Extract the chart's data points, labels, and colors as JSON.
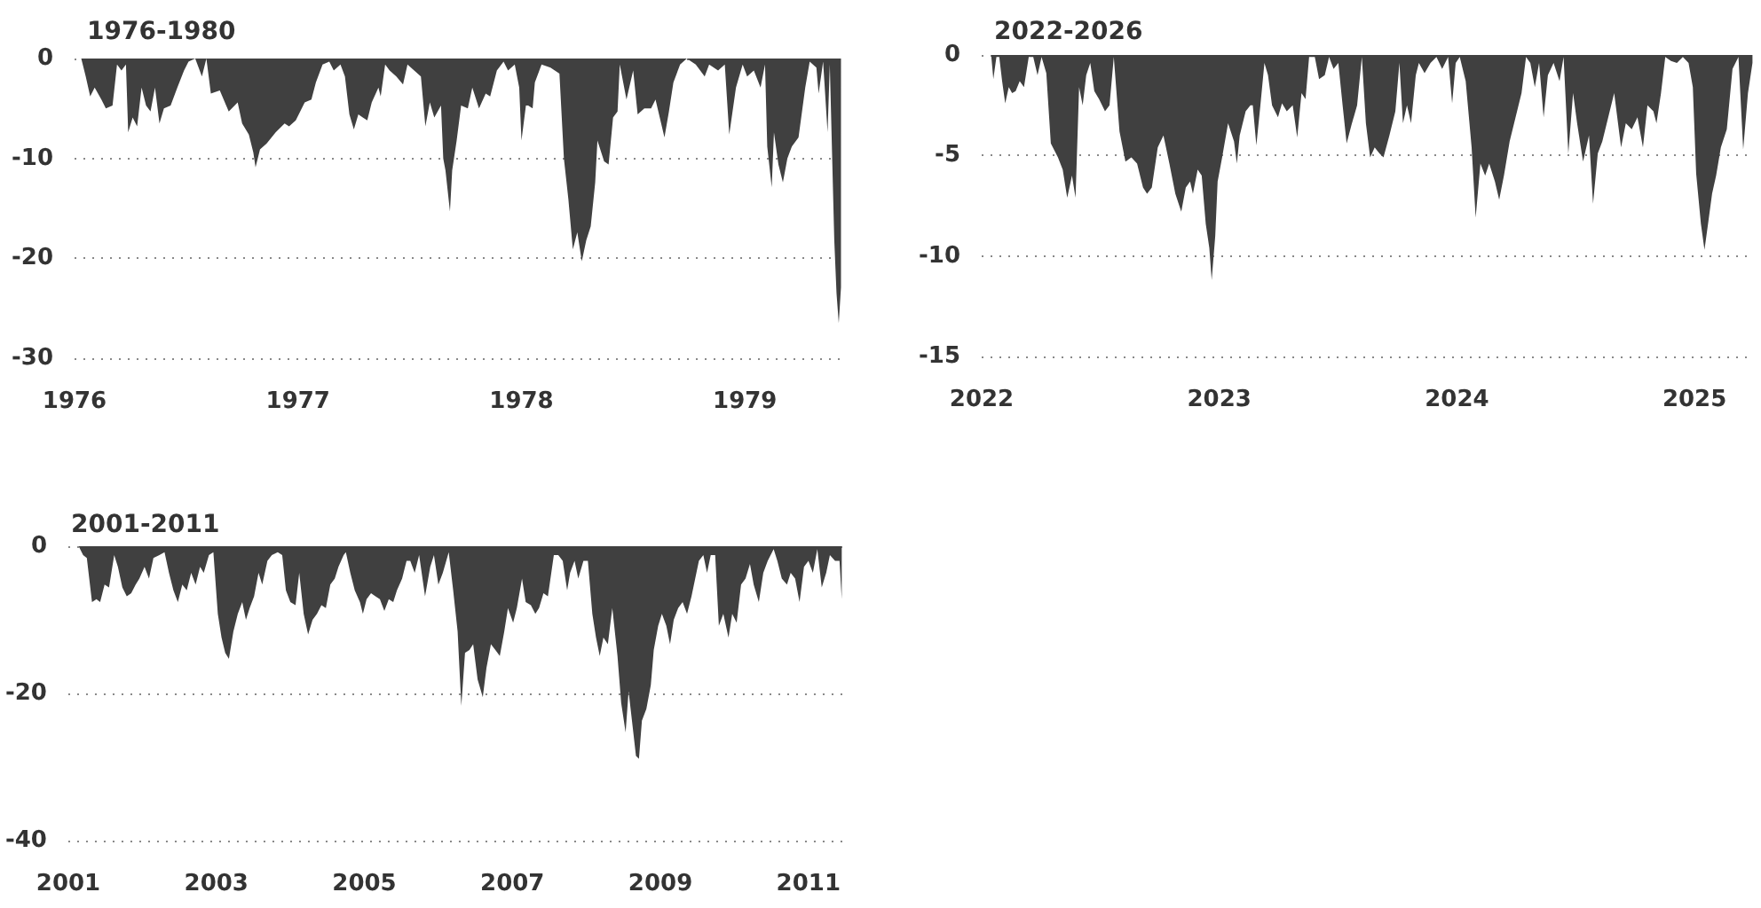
{
  "chart_data": [
    {
      "type": "area",
      "title": "1976-1980",
      "color": "#404040",
      "grid": "y",
      "xlim": [
        1976,
        1979.44
      ],
      "xticks": [
        1976,
        1977,
        1978,
        1979
      ],
      "ylim": [
        -30,
        0
      ],
      "yticks": [
        -30,
        -20,
        -10,
        0
      ],
      "x": [
        1976.03,
        1976.05,
        1976.07,
        1976.09,
        1976.12,
        1976.14,
        1976.17,
        1976.19,
        1976.21,
        1976.23,
        1976.24,
        1976.26,
        1976.28,
        1976.3,
        1976.32,
        1976.34,
        1976.36,
        1976.38,
        1976.4,
        1976.43,
        1976.46,
        1976.49,
        1976.51,
        1976.54,
        1976.57,
        1976.59,
        1976.61,
        1976.65,
        1976.69,
        1976.73,
        1976.75,
        1976.78,
        1976.8,
        1976.81,
        1976.83,
        1976.86,
        1976.9,
        1976.94,
        1976.96,
        1976.99,
        1977.03,
        1977.06,
        1977.08,
        1977.11,
        1977.14,
        1977.16,
        1977.19,
        1977.21,
        1977.23,
        1977.25,
        1977.27,
        1977.29,
        1977.31,
        1977.33,
        1977.36,
        1977.37,
        1977.39,
        1977.41,
        1977.44,
        1977.47,
        1977.49,
        1977.52,
        1977.55,
        1977.57,
        1977.59,
        1977.61,
        1977.64,
        1977.65,
        1977.66,
        1977.68,
        1977.69,
        1977.71,
        1977.73,
        1977.76,
        1977.78,
        1977.81,
        1977.84,
        1977.86,
        1977.89,
        1977.92,
        1977.94,
        1977.97,
        1977.99,
        1978.0,
        1978.02,
        1978.03,
        1978.05,
        1978.06,
        1978.09,
        1978.13,
        1978.17,
        1978.19,
        1978.21,
        1978.23,
        1978.25,
        1978.27,
        1978.29,
        1978.31,
        1978.33,
        1978.34,
        1978.37,
        1978.39,
        1978.41,
        1978.43,
        1978.44,
        1978.47,
        1978.5,
        1978.52,
        1978.55,
        1978.58,
        1978.6,
        1978.64,
        1978.66,
        1978.68,
        1978.71,
        1978.74,
        1978.78,
        1978.82,
        1978.84,
        1978.88,
        1978.91,
        1978.93,
        1978.96,
        1978.99,
        1979.01,
        1979.04,
        1979.07,
        1979.09,
        1979.1,
        1979.12,
        1979.13,
        1979.15,
        1979.17,
        1979.19,
        1979.21,
        1979.24,
        1979.27,
        1979.29,
        1979.32,
        1979.33,
        1979.35,
        1979.37,
        1979.38,
        1979.4,
        1979.41,
        1979.42,
        1979.43
      ],
      "values": [
        0,
        -1.8,
        -3.8,
        -2.9,
        -4.1,
        -5.0,
        -4.7,
        -0.6,
        -1.2,
        -0.6,
        -7.4,
        -5.9,
        -6.8,
        -2.9,
        -4.7,
        -5.3,
        -2.9,
        -6.5,
        -5.0,
        -4.7,
        -2.9,
        -1.2,
        -0.3,
        0,
        -1.8,
        0,
        -3.5,
        -3.2,
        -5.3,
        -4.4,
        -6.5,
        -7.6,
        -9.4,
        -10.9,
        -9.1,
        -8.5,
        -7.4,
        -6.5,
        -6.8,
        -6.2,
        -4.4,
        -4.1,
        -2.4,
        -0.6,
        -0.3,
        -1.2,
        -0.6,
        -1.8,
        -5.6,
        -7.1,
        -5.6,
        -5.9,
        -6.2,
        -4.4,
        -2.9,
        -3.8,
        -0.6,
        -1.2,
        -1.8,
        -2.6,
        -0.6,
        -1.2,
        -1.8,
        -6.8,
        -4.4,
        -5.9,
        -4.7,
        -10.0,
        -11.2,
        -15.3,
        -11.2,
        -8.2,
        -4.7,
        -5.0,
        -2.9,
        -5.0,
        -3.5,
        -3.8,
        -1.2,
        -0.3,
        -1.2,
        -0.6,
        -2.9,
        -8.2,
        -4.7,
        -4.7,
        -5.0,
        -2.4,
        -0.6,
        -0.9,
        -1.5,
        -10.0,
        -14.1,
        -19.1,
        -17.4,
        -20.3,
        -18.2,
        -16.8,
        -12.4,
        -8.2,
        -10.3,
        -10.6,
        -5.9,
        -5.3,
        -0.6,
        -4.1,
        -1.2,
        -5.6,
        -5.0,
        -5.0,
        -4.1,
        -7.9,
        -5.3,
        -2.4,
        -0.6,
        0,
        -0.6,
        -1.8,
        -0.6,
        -1.2,
        -0.6,
        -7.6,
        -2.9,
        -0.6,
        -1.8,
        -1.2,
        -2.9,
        -0.6,
        -8.8,
        -12.9,
        -7.4,
        -10.6,
        -12.4,
        -10.0,
        -8.8,
        -7.9,
        -2.9,
        -0.3,
        -0.9,
        -3.5,
        -0.3,
        -7.4,
        -0.6,
        -18.2,
        -23.5,
        -26.5,
        -22.9
      ]
    },
    {
      "type": "area",
      "title": "2022-2026",
      "color": "#404040",
      "grid": "y",
      "xlim": [
        2022,
        2025.25
      ],
      "xticks": [
        2022,
        2023,
        2024,
        2025
      ],
      "ylim": [
        -15,
        0
      ],
      "yticks": [
        -15,
        -10,
        -5,
        0
      ],
      "x": [
        2022.04,
        2022.049,
        2022.062,
        2022.074,
        2022.086,
        2022.099,
        2022.114,
        2022.128,
        2022.143,
        2022.16,
        2022.178,
        2022.198,
        2022.217,
        2022.235,
        2022.252,
        2022.272,
        2022.291,
        2022.321,
        2022.341,
        2022.36,
        2022.38,
        2022.395,
        2022.41,
        2022.425,
        2022.44,
        2022.457,
        2022.474,
        2022.494,
        2022.519,
        2022.538,
        2022.556,
        2022.58,
        2022.605,
        2022.63,
        2022.654,
        2022.679,
        2022.696,
        2022.716,
        2022.741,
        2022.765,
        2022.79,
        2022.815,
        2022.84,
        2022.859,
        2022.877,
        2022.889,
        2022.909,
        2022.926,
        2022.943,
        2022.958,
        2022.968,
        2022.983,
        2022.993,
        2023.012,
        2023.037,
        2023.062,
        2023.074,
        2023.086,
        2023.111,
        2023.131,
        2023.141,
        2023.156,
        2023.173,
        2023.19,
        2023.205,
        2023.222,
        2023.247,
        2023.264,
        2023.284,
        2023.309,
        2023.328,
        2023.346,
        2023.363,
        2023.378,
        2023.402,
        2023.42,
        2023.444,
        2023.462,
        2023.481,
        2023.501,
        2023.519,
        2023.536,
        2023.556,
        2023.58,
        2023.6,
        2023.617,
        2023.635,
        2023.654,
        2023.674,
        2023.691,
        2023.716,
        2023.741,
        2023.758,
        2023.773,
        2023.79,
        2023.807,
        2023.827,
        2023.84,
        2023.864,
        2023.889,
        2023.914,
        2023.938,
        2023.963,
        2023.98,
        2023.995,
        2024.012,
        2024.037,
        2024.062,
        2024.079,
        2024.099,
        2024.119,
        2024.136,
        2024.16,
        2024.178,
        2024.198,
        2024.222,
        2024.247,
        2024.272,
        2024.291,
        2024.309,
        2024.328,
        2024.346,
        2024.365,
        2024.383,
        2024.407,
        2024.432,
        2024.449,
        2024.469,
        2024.489,
        2024.506,
        2024.531,
        2024.556,
        2024.573,
        2024.593,
        2024.612,
        2024.637,
        2024.662,
        2024.691,
        2024.711,
        2024.736,
        2024.76,
        2024.783,
        2024.802,
        2024.827,
        2024.84,
        2024.859,
        2024.877,
        2024.901,
        2024.926,
        2024.951,
        2024.975,
        2024.993,
        2025.007,
        2025.027,
        2025.042,
        2025.057,
        2025.074,
        2025.091,
        2025.111,
        2025.136,
        2025.16,
        2025.185,
        2025.205,
        2025.225,
        2025.244
      ],
      "values": [
        0,
        -1.2,
        -0.1,
        -0.1,
        -1.3,
        -2.4,
        -1.6,
        -1.9,
        -1.8,
        -1.3,
        -1.6,
        -0.1,
        -0.1,
        -1.0,
        -0.1,
        -0.9,
        -4.4,
        -5.1,
        -5.7,
        -7.1,
        -6.0,
        -7.1,
        -1.6,
        -2.5,
        -1.0,
        -0.4,
        -1.8,
        -2.2,
        -2.8,
        -2.5,
        -0.1,
        -3.8,
        -5.3,
        -5.1,
        -5.4,
        -6.6,
        -6.9,
        -6.6,
        -4.6,
        -4.0,
        -5.4,
        -6.9,
        -7.8,
        -6.6,
        -6.3,
        -6.9,
        -5.7,
        -6.0,
        -8.4,
        -9.6,
        -11.2,
        -9.0,
        -6.3,
        -5.1,
        -3.4,
        -4.3,
        -5.4,
        -4.0,
        -2.8,
        -2.5,
        -2.5,
        -4.5,
        -2.5,
        -0.4,
        -1.0,
        -2.5,
        -3.1,
        -2.4,
        -2.8,
        -2.5,
        -4.1,
        -1.9,
        -2.2,
        -0.1,
        -0.1,
        -1.2,
        -1.0,
        -0.1,
        -0.7,
        -0.4,
        -2.5,
        -4.4,
        -3.5,
        -2.5,
        -0.1,
        -3.4,
        -5.1,
        -4.6,
        -4.9,
        -5.1,
        -4.0,
        -2.8,
        -0.4,
        -3.4,
        -2.5,
        -3.4,
        -1.0,
        -0.4,
        -0.9,
        -0.4,
        -0.1,
        -0.7,
        -0.1,
        -2.4,
        -0.4,
        -0.1,
        -1.3,
        -4.6,
        -8.1,
        -5.4,
        -6.0,
        -5.4,
        -6.3,
        -7.2,
        -6.0,
        -4.3,
        -3.1,
        -1.9,
        -0.1,
        -0.4,
        -1.6,
        -0.4,
        -3.1,
        -1.0,
        -0.4,
        -1.3,
        -0.1,
        -4.9,
        -1.9,
        -3.4,
        -5.3,
        -4.0,
        -7.4,
        -4.9,
        -4.3,
        -3.1,
        -1.9,
        -4.6,
        -3.4,
        -3.7,
        -3.1,
        -4.6,
        -2.5,
        -2.8,
        -3.4,
        -1.9,
        -0.1,
        -0.3,
        -0.4,
        -0.1,
        -0.4,
        -1.6,
        -5.9,
        -8.4,
        -9.7,
        -8.4,
        -6.9,
        -6.0,
        -4.6,
        -3.7,
        -0.7,
        -0.1,
        -4.7,
        -1.9,
        -0.4
      ]
    },
    {
      "type": "area",
      "title": "2001-2011",
      "color": "#404040",
      "grid": "y",
      "xlim": [
        2001,
        2011.47
      ],
      "xticks": [
        2001,
        2003,
        2005,
        2007,
        2009,
        2011
      ],
      "ylim": [
        -40,
        0
      ],
      "yticks": [
        -40,
        -20,
        0
      ],
      "x": [
        2001.14,
        2001.2,
        2001.25,
        2001.32,
        2001.38,
        2001.43,
        2001.49,
        2001.55,
        2001.62,
        2001.67,
        2001.73,
        2001.79,
        2001.85,
        2001.91,
        2001.96,
        2002.03,
        2002.09,
        2002.15,
        2002.23,
        2002.3,
        2002.36,
        2002.42,
        2002.48,
        2002.54,
        2002.6,
        2002.66,
        2002.72,
        2002.78,
        2002.83,
        2002.9,
        2002.96,
        2003.02,
        2003.07,
        2003.12,
        2003.17,
        2003.23,
        2003.29,
        2003.35,
        2003.4,
        2003.45,
        2003.51,
        2003.57,
        2003.62,
        2003.69,
        2003.75,
        2003.83,
        2003.89,
        2003.94,
        2004.0,
        2004.07,
        2004.12,
        2004.18,
        2004.24,
        2004.3,
        2004.36,
        2004.42,
        2004.48,
        2004.54,
        2004.6,
        2004.65,
        2004.72,
        2004.75,
        2004.81,
        2004.87,
        2004.94,
        2004.98,
        2005.03,
        2005.09,
        2005.15,
        2005.21,
        2005.27,
        2005.33,
        2005.39,
        2005.44,
        2005.51,
        2005.57,
        2005.62,
        2005.68,
        2005.74,
        2005.82,
        2005.89,
        2005.94,
        2006.0,
        2006.06,
        2006.14,
        2006.2,
        2006.26,
        2006.31,
        2006.36,
        2006.42,
        2006.47,
        2006.53,
        2006.6,
        2006.65,
        2006.71,
        2006.77,
        2006.83,
        2006.89,
        2006.94,
        2007.01,
        2007.06,
        2007.13,
        2007.18,
        2007.25,
        2007.31,
        2007.36,
        2007.42,
        2007.48,
        2007.56,
        2007.62,
        2007.68,
        2007.74,
        2007.78,
        2007.84,
        2007.89,
        2007.96,
        2008.02,
        2008.08,
        2008.13,
        2008.18,
        2008.23,
        2008.29,
        2008.35,
        2008.42,
        2008.47,
        2008.53,
        2008.57,
        2008.62,
        2008.67,
        2008.71,
        2008.75,
        2008.81,
        2008.87,
        2008.91,
        2008.97,
        2009.02,
        2009.08,
        2009.13,
        2009.18,
        2009.24,
        2009.3,
        2009.36,
        2009.42,
        2009.47,
        2009.52,
        2009.58,
        2009.63,
        2009.68,
        2009.74,
        2009.79,
        2009.85,
        2009.92,
        2009.97,
        2010.03,
        2010.09,
        2010.15,
        2010.21,
        2010.26,
        2010.33,
        2010.39,
        2010.45,
        2010.53,
        2010.58,
        2010.64,
        2010.71,
        2010.76,
        2010.82,
        2010.88,
        2010.94,
        2011.0,
        2011.06,
        2011.12,
        2011.18,
        2011.24,
        2011.29,
        2011.36,
        2011.42,
        2011.45
      ],
      "values": [
        0,
        -1.2,
        -1.6,
        -7.6,
        -7.2,
        -7.6,
        -5.2,
        -5.6,
        -1.2,
        -2.8,
        -5.6,
        -6.8,
        -6.4,
        -5.2,
        -4.4,
        -2.8,
        -4.4,
        -1.6,
        -1.2,
        -0.8,
        -3.6,
        -6.0,
        -7.6,
        -5.2,
        -6.0,
        -3.6,
        -5.2,
        -2.8,
        -3.6,
        -1.2,
        -0.8,
        -9.2,
        -12.4,
        -14.5,
        -15.3,
        -11.6,
        -9.2,
        -7.6,
        -10.0,
        -8.4,
        -6.8,
        -3.6,
        -5.2,
        -2.0,
        -1.2,
        -0.8,
        -1.2,
        -6.0,
        -7.6,
        -8.0,
        -3.6,
        -9.2,
        -12.0,
        -10.0,
        -9.2,
        -8.0,
        -8.4,
        -5.2,
        -4.4,
        -2.8,
        -1.2,
        -0.8,
        -3.6,
        -6.0,
        -7.6,
        -9.2,
        -7.2,
        -6.4,
        -6.8,
        -7.2,
        -8.8,
        -7.2,
        -7.6,
        -6.0,
        -4.4,
        -2.0,
        -2.0,
        -3.6,
        -1.2,
        -6.8,
        -2.8,
        -1.2,
        -5.2,
        -3.6,
        -0.8,
        -6.0,
        -11.6,
        -21.7,
        -14.5,
        -14.1,
        -13.3,
        -18.1,
        -20.5,
        -16.5,
        -13.3,
        -14.1,
        -14.9,
        -11.6,
        -8.4,
        -10.4,
        -8.4,
        -4.4,
        -7.6,
        -8.0,
        -9.2,
        -8.4,
        -6.4,
        -6.8,
        -1.2,
        -1.2,
        -2.0,
        -6.0,
        -3.6,
        -2.0,
        -4.4,
        -2.0,
        -2.0,
        -9.2,
        -12.4,
        -14.9,
        -12.4,
        -13.3,
        -8.4,
        -14.9,
        -21.3,
        -25.3,
        -19.7,
        -24.1,
        -28.5,
        -28.9,
        -23.7,
        -22.1,
        -18.9,
        -14.1,
        -10.8,
        -9.2,
        -10.8,
        -13.3,
        -10.0,
        -8.4,
        -7.6,
        -9.2,
        -6.8,
        -4.4,
        -2.0,
        -1.2,
        -3.6,
        -1.2,
        -1.2,
        -10.8,
        -9.2,
        -12.4,
        -9.2,
        -10.4,
        -5.2,
        -4.4,
        -2.4,
        -5.2,
        -7.6,
        -3.6,
        -2.0,
        -0.4,
        -2.0,
        -4.4,
        -5.2,
        -3.6,
        -4.4,
        -7.6,
        -2.8,
        -2.0,
        -3.6,
        -0.4,
        -5.6,
        -3.6,
        -1.2,
        -2.0,
        -2.0,
        -7.2
      ]
    }
  ]
}
